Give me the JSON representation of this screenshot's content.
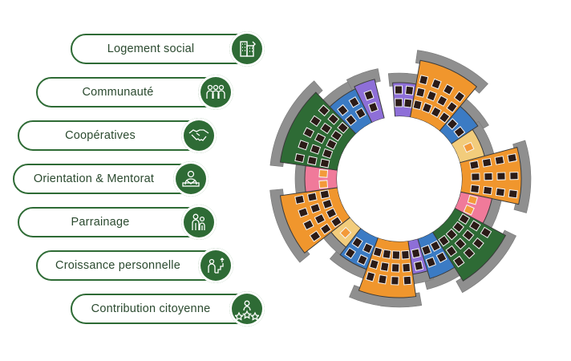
{
  "items": [
    {
      "label": "Logement social",
      "icon": "building-icon"
    },
    {
      "label": "Communauté",
      "icon": "community-icon"
    },
    {
      "label": "Coopératives",
      "icon": "handshake-icon"
    },
    {
      "label": "Orientation & Mentorat",
      "icon": "mentor-icon"
    },
    {
      "label": "Parrainage",
      "icon": "sponsorship-icon"
    },
    {
      "label": "Croissance personnelle",
      "icon": "growth-icon"
    },
    {
      "label": "Contribution citoyenne",
      "icon": "citizen-icon"
    }
  ],
  "colors": {
    "accent": "#2e6b35",
    "orange": "#f0962d",
    "green": "#2e6b35",
    "blue": "#3b7bc4",
    "purple": "#8e6fd8",
    "pink": "#f07a9a",
    "yellow": "#f2cc7c",
    "gray": "#8f8f8f"
  }
}
